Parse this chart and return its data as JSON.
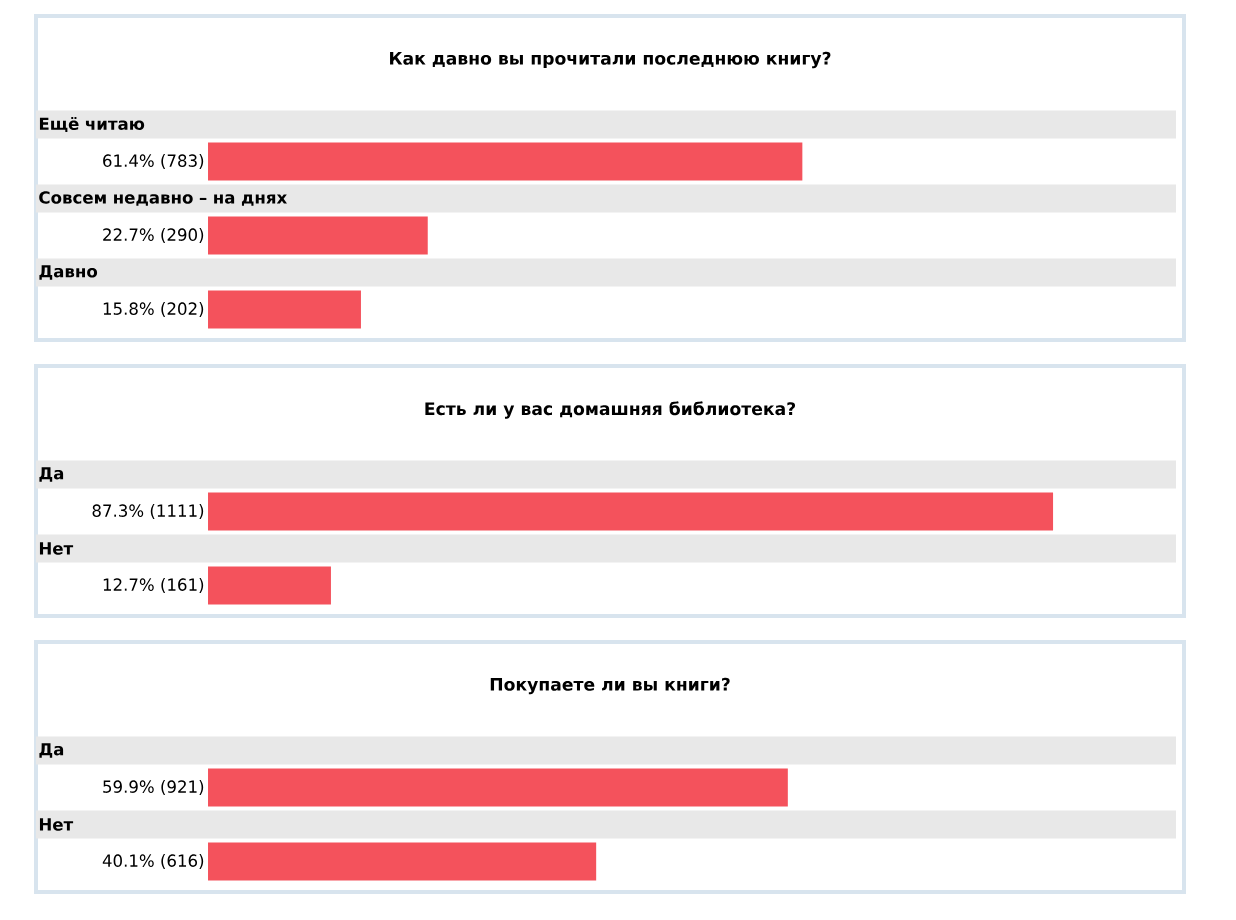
{
  "chart_data": [
    {
      "type": "bar",
      "orientation": "horizontal",
      "title": "Как давно вы прочитали последнюю книгу?",
      "categories": [
        "Ещё читаю",
        "Совсем недавно – на днях",
        "Давно"
      ],
      "values": [
        61.4,
        22.7,
        15.8
      ],
      "value_labels": [
        "61.4% (783)",
        "22.7% (290)",
        "15.8% (202)"
      ],
      "color": "#f4525c"
    },
    {
      "type": "bar",
      "orientation": "horizontal",
      "title": "Есть ли у вас домашняя библиотека?",
      "categories": [
        "Да",
        "Нет"
      ],
      "values": [
        87.3,
        12.7
      ],
      "value_labels": [
        "87.3% (1111)",
        "12.7% (161)"
      ],
      "color": "#f4525c"
    },
    {
      "type": "bar",
      "orientation": "horizontal",
      "title": "Покупаете ли вы книги?",
      "categories": [
        "Да",
        "Нет"
      ],
      "values": [
        59.9,
        40.1
      ],
      "value_labels": [
        "59.9% (921)",
        "40.1% (616)"
      ],
      "color": "#f4525c"
    }
  ]
}
